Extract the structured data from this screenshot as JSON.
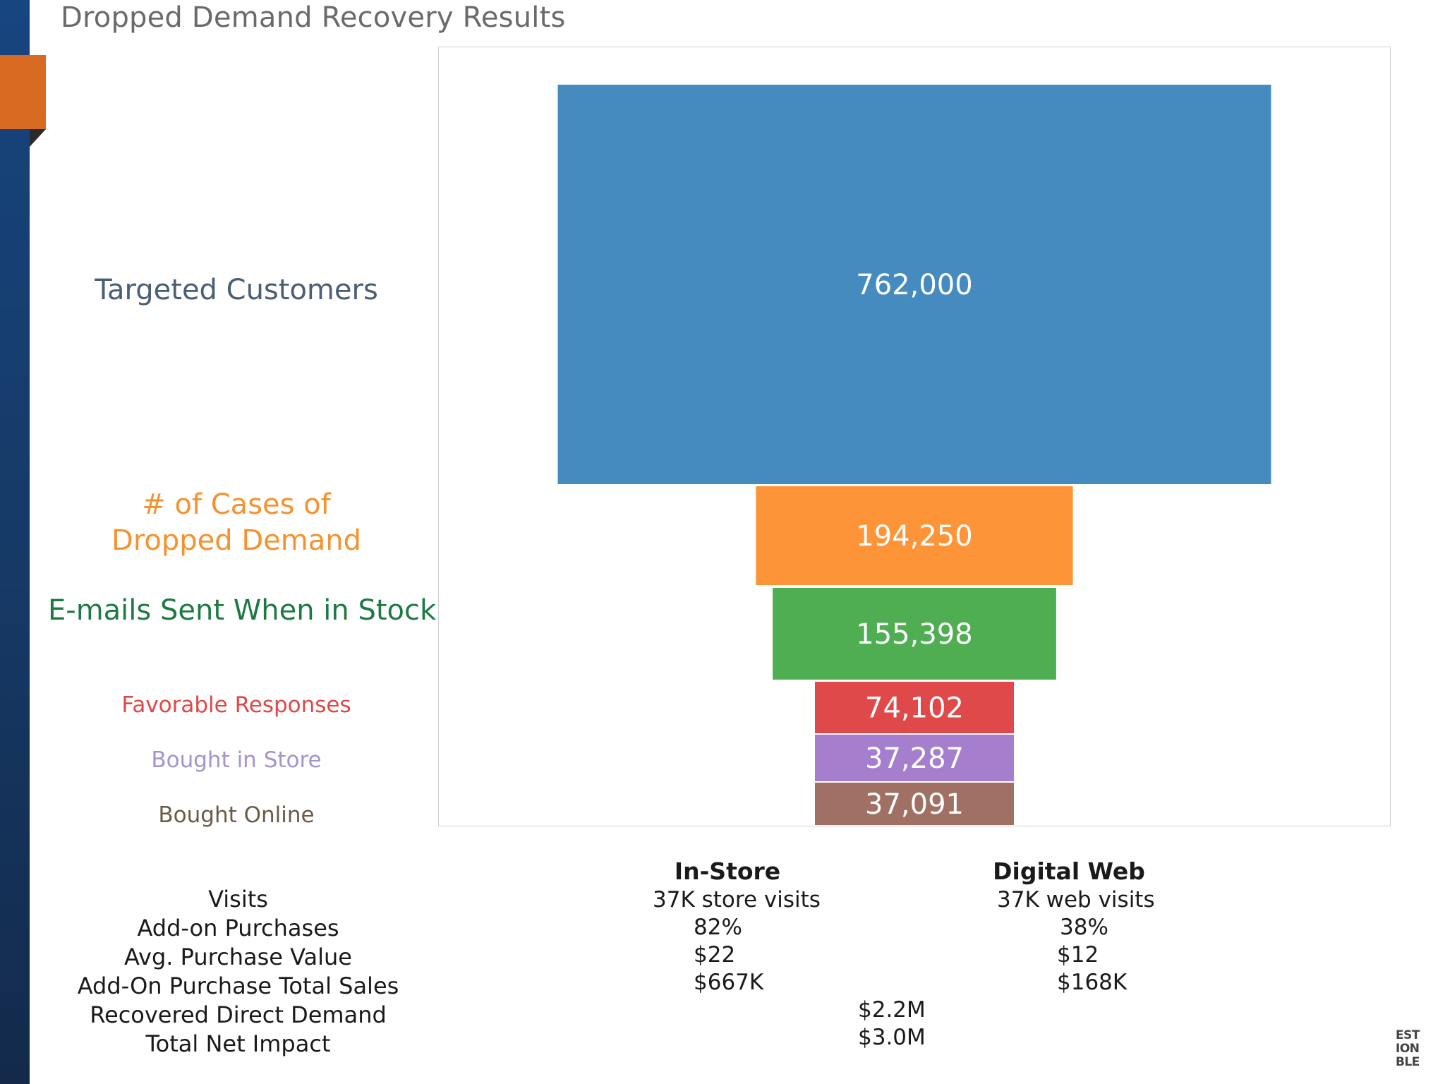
{
  "page": {
    "title": "Dropped Demand Recovery Results"
  },
  "chart_data": {
    "type": "funnel",
    "stages": [
      {
        "label": "Targeted Customers",
        "value": 762000,
        "value_label": "762,000",
        "color": "#458bc0",
        "label_color": "#4a5f74"
      },
      {
        "label": "# of Cases of Dropped Demand",
        "value": 194250,
        "value_label": "194,250",
        "color": "#fd9538",
        "label_color": "#f5922f"
      },
      {
        "label": "E-mails Sent When in Stock",
        "value": 155398,
        "value_label": "155,398",
        "color": "#4fad52",
        "label_color": "#1e7a45"
      },
      {
        "label": "Favorable Responses",
        "value": 74102,
        "value_label": "74,102",
        "color": "#e04949",
        "label_color": "#df4747"
      },
      {
        "label": "Bought in Store",
        "value": 37287,
        "value_label": "37,287",
        "color": "#a57fcd",
        "label_color": "#a593cd"
      },
      {
        "label": "Bought Online",
        "value": 37091,
        "value_label": "37,091",
        "color": "#a07064",
        "label_color": "#6b5a48"
      }
    ]
  },
  "metrics": {
    "row_labels": [
      "Visits",
      "Add-on Purchases",
      "Avg. Purchase Value",
      "Add-On Purchase Total Sales",
      "Recovered Direct Demand",
      "Total Net Impact"
    ],
    "in_store": {
      "header": "In-Store",
      "visits": "37K store visits",
      "addon": "82%",
      "avg_value": "$22",
      "total_sales": "$667K"
    },
    "digital_web": {
      "header": "Digital Web",
      "visits": "37K web visits",
      "addon": "38%",
      "avg_value": "$12",
      "total_sales": "$168K"
    },
    "recovered_direct_demand": "$2.2M",
    "total_net_impact": "$3.0M"
  },
  "logo": {
    "lines": [
      "EST",
      "ION",
      "BLE"
    ]
  }
}
